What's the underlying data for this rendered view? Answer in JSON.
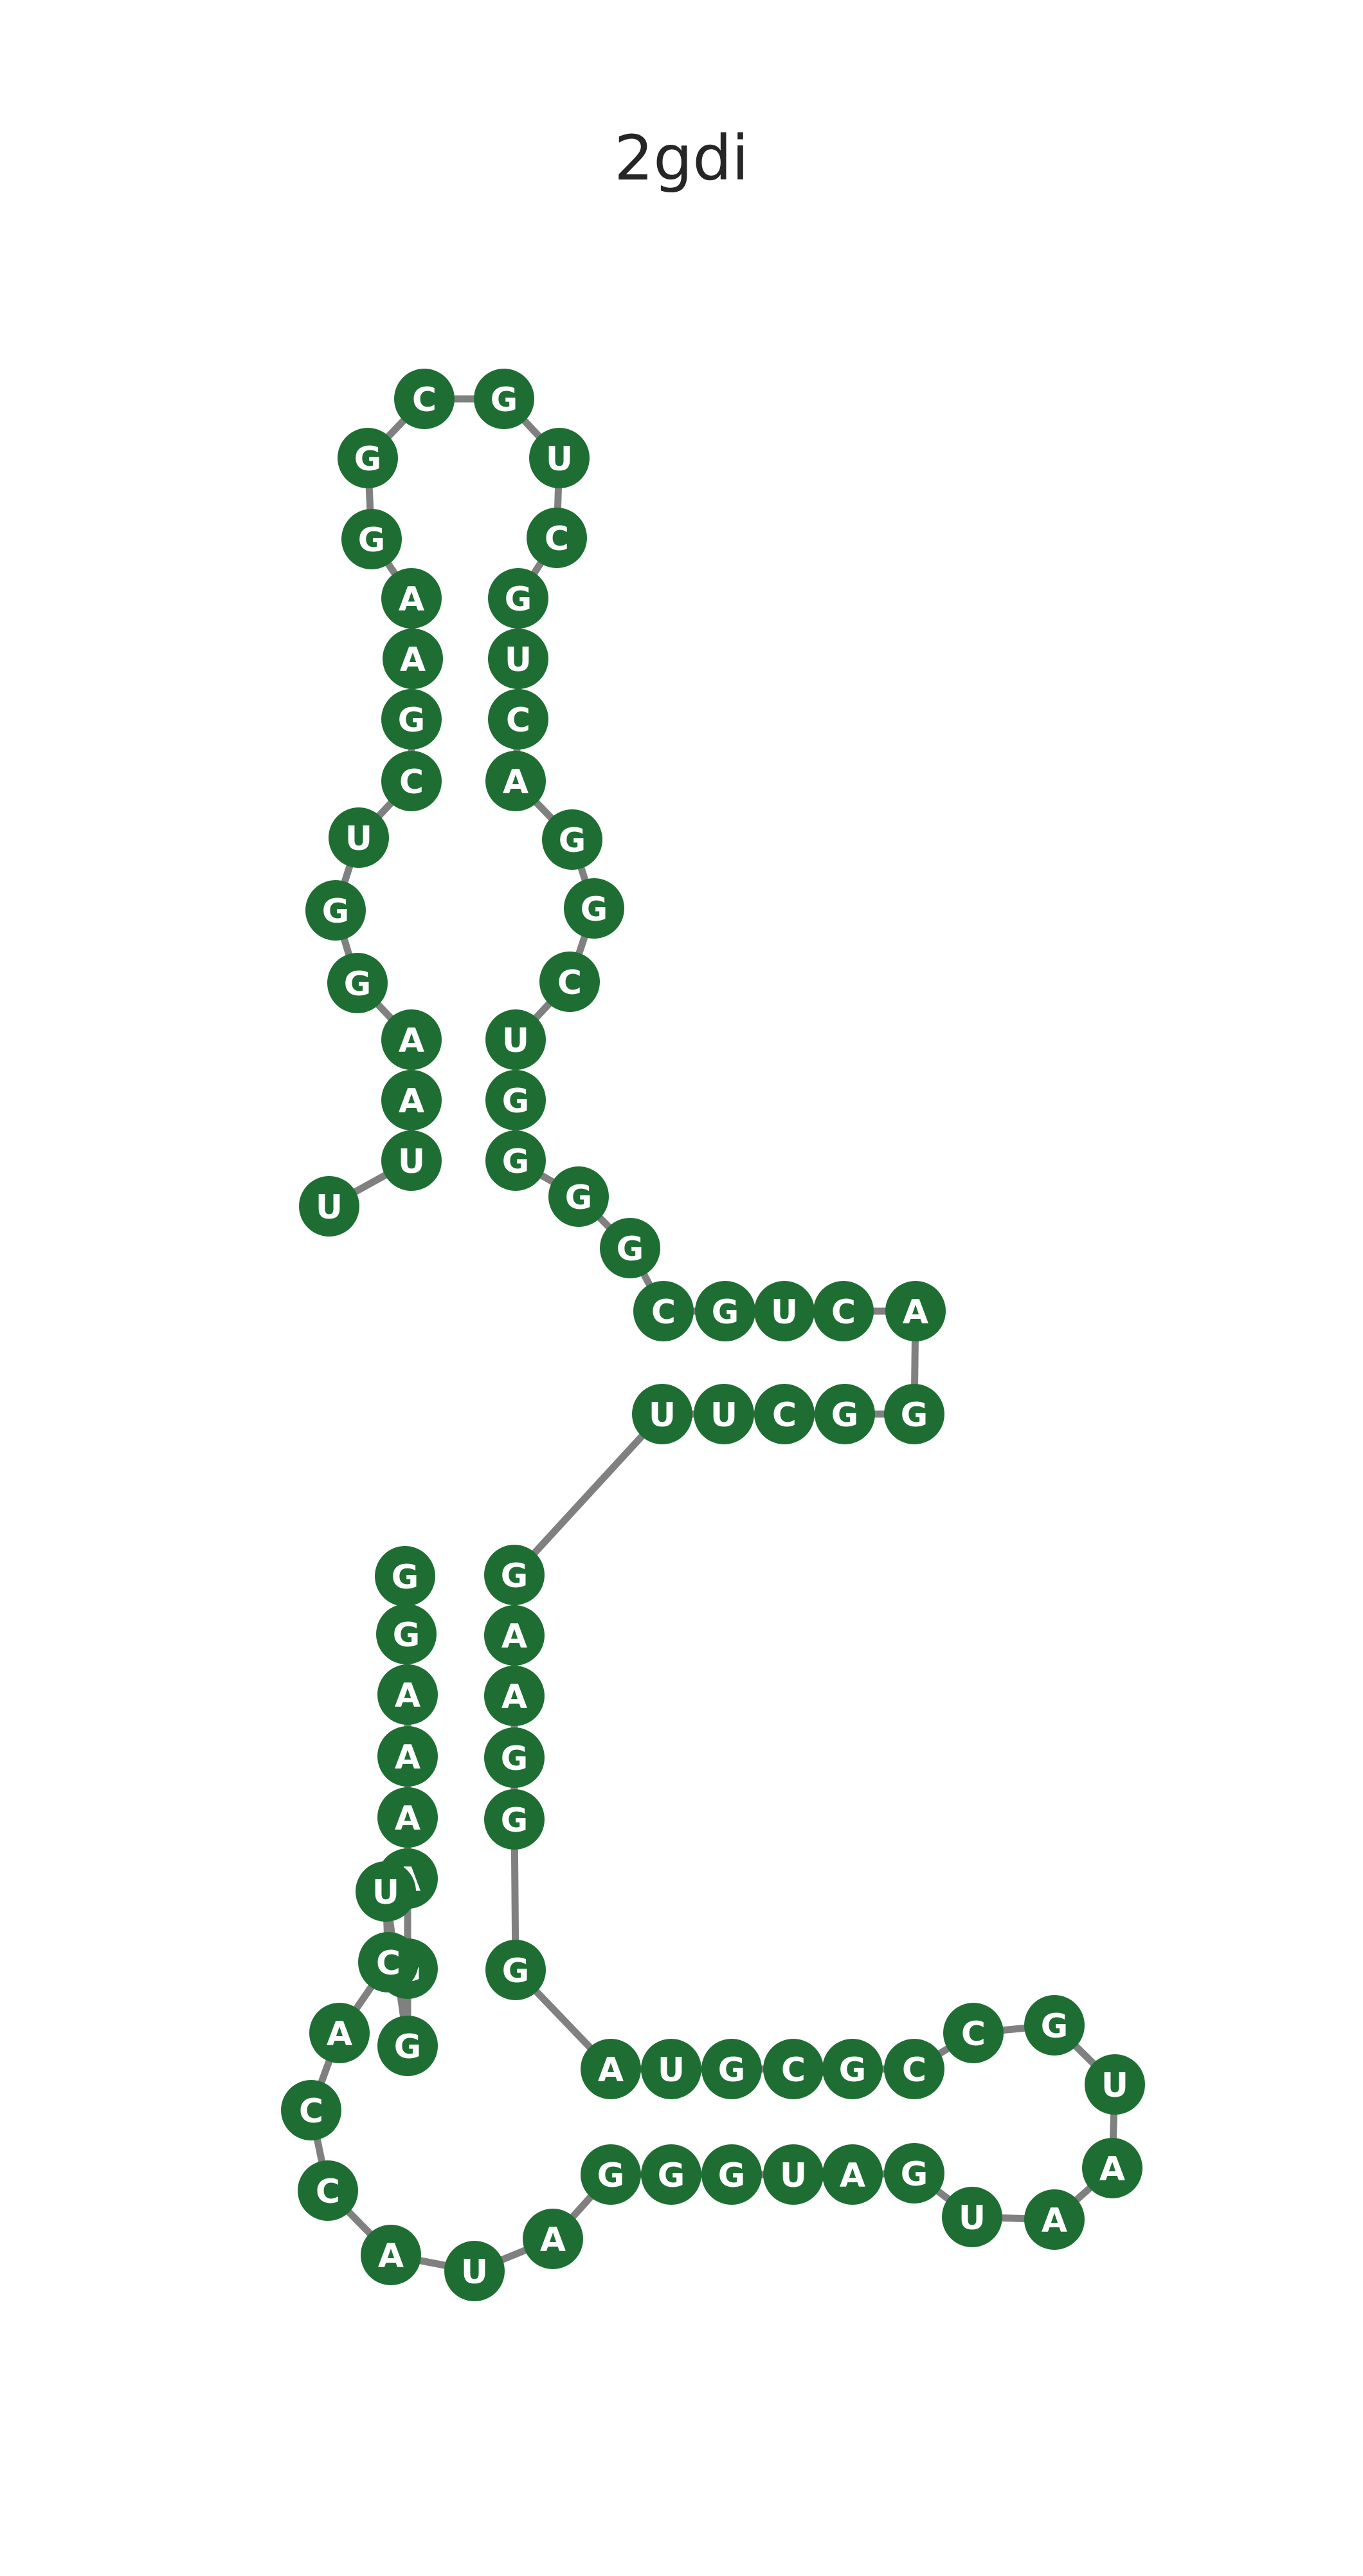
{
  "title": "2gdi",
  "colors": {
    "backbone": "#808080",
    "pair": "#808080",
    "plain_text": "#000000",
    "circle_text": "#ffffff",
    "blue": "#2e7699",
    "magenta": "#c25da7",
    "teal": "#187a64",
    "green": "#1e6e33",
    "orange": "#f07012",
    "purple": "#8e5bbb",
    "periwinkle": "#5f65b8"
  },
  "nucleotides": [
    {
      "base": "G",
      "color": "green"
    },
    {
      "base": "G",
      "color": "green"
    },
    {
      "base": "A",
      "color": "green"
    },
    {
      "base": "A",
      "color": "green"
    },
    {
      "base": "A",
      "color": "green"
    },
    {
      "base": "A",
      "color": "green"
    },
    {
      "base": "G",
      "color": "green"
    },
    {
      "base": "G",
      "color": "green"
    },
    {
      "base": "U",
      "color": "green"
    },
    {
      "base": "C",
      "color": "green"
    },
    {
      "base": "A",
      "color": "green"
    },
    {
      "base": "C",
      "color": "green"
    },
    {
      "base": "C",
      "color": "green"
    },
    {
      "base": "A",
      "color": "green"
    },
    {
      "base": "U",
      "color": "green"
    },
    {
      "base": "A",
      "color": "green"
    },
    {
      "base": "G",
      "color": "green"
    },
    {
      "base": "G",
      "color": "green"
    },
    {
      "base": "G",
      "color": "green"
    },
    {
      "base": "U",
      "color": "green"
    },
    {
      "base": "A",
      "color": "green"
    },
    {
      "base": "G",
      "color": "green"
    },
    {
      "base": "U",
      "color": "green"
    },
    {
      "base": "A",
      "color": "green"
    },
    {
      "base": "A",
      "color": "green"
    },
    {
      "base": "U",
      "color": "green"
    },
    {
      "base": "G",
      "color": "green"
    },
    {
      "base": "C",
      "color": "green"
    },
    {
      "base": "C",
      "color": "green"
    },
    {
      "base": "G",
      "color": "green"
    },
    {
      "base": "C",
      "color": "green"
    },
    {
      "base": "G",
      "color": "green"
    },
    {
      "base": "U",
      "color": "green"
    },
    {
      "base": "A",
      "color": "green"
    },
    {
      "base": "G",
      "color": "green"
    },
    {
      "base": "G",
      "color": "green"
    },
    {
      "base": "G",
      "color": "green"
    },
    {
      "base": "A",
      "color": "green"
    },
    {
      "base": "A",
      "color": "green"
    },
    {
      "base": "G",
      "color": "green"
    },
    {
      "base": "U",
      "color": "green"
    },
    {
      "base": "U",
      "color": "green"
    },
    {
      "base": "C",
      "color": "green"
    },
    {
      "base": "G",
      "color": "green"
    },
    {
      "base": "G",
      "color": "green"
    },
    {
      "base": "A",
      "color": "green"
    },
    {
      "base": "C",
      "color": "green"
    },
    {
      "base": "U",
      "color": "green"
    },
    {
      "base": "G",
      "color": "green"
    },
    {
      "base": "C",
      "color": "green"
    },
    {
      "base": "G",
      "color": "green"
    },
    {
      "base": "G",
      "color": "green"
    },
    {
      "base": "G",
      "color": "green"
    },
    {
      "base": "G",
      "color": "green"
    },
    {
      "base": "U",
      "color": "green"
    },
    {
      "base": "C",
      "color": "green"
    },
    {
      "base": "G",
      "color": "green"
    },
    {
      "base": "G",
      "color": "green"
    },
    {
      "base": "A",
      "color": "green"
    },
    {
      "base": "C",
      "color": "green"
    },
    {
      "base": "U",
      "color": "green"
    },
    {
      "base": "G",
      "color": "green"
    },
    {
      "base": "C",
      "color": "green"
    },
    {
      "base": "U",
      "color": "green"
    },
    {
      "base": "G",
      "color": "green"
    },
    {
      "base": "C",
      "color": "green"
    },
    {
      "base": "G",
      "color": "green"
    },
    {
      "base": "G",
      "color": "green"
    },
    {
      "base": "A",
      "color": "green"
    },
    {
      "base": "A",
      "color": "green"
    },
    {
      "base": "G",
      "color": "green"
    },
    {
      "base": "C",
      "color": "green"
    },
    {
      "base": "U",
      "color": "green"
    },
    {
      "base": "G",
      "color": "green"
    },
    {
      "base": "G",
      "color": "green"
    },
    {
      "base": "A",
      "color": "green"
    },
    {
      "base": "A",
      "color": "green"
    },
    {
      "base": "U",
      "color": "green"
    },
    {
      "base": "U",
      "color": "green"
    }
  ],
  "base_pairs": []
}
